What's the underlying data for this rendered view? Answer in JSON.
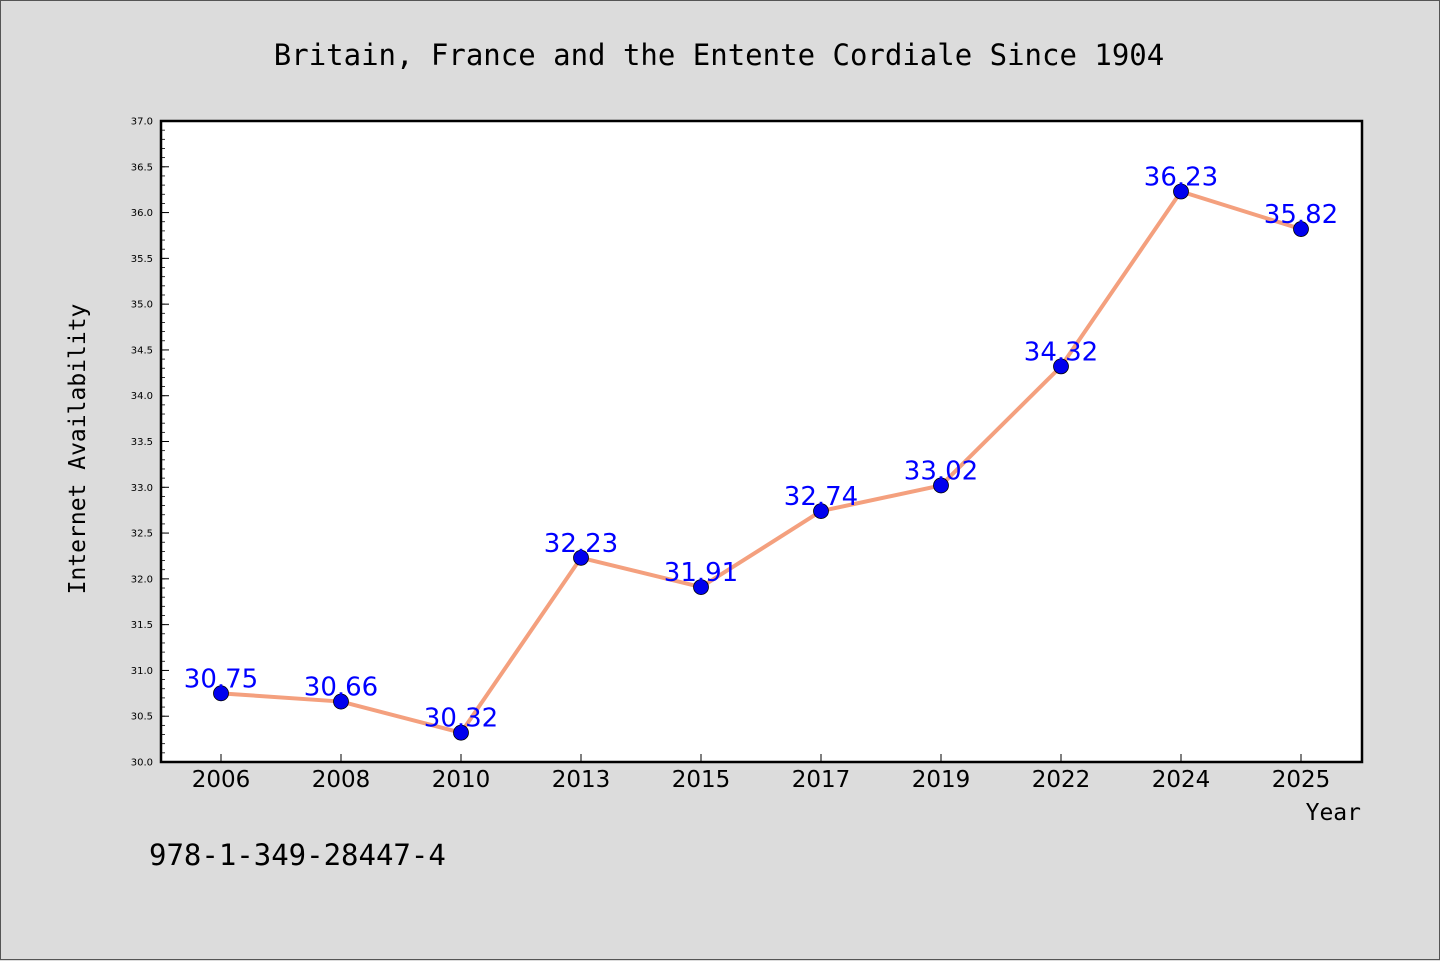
{
  "chart_data": {
    "type": "line",
    "title": "Britain, France and the Entente Cordiale Since 1904",
    "xlabel": "Year",
    "ylabel": "Internet Availability",
    "categories": [
      "2006",
      "2008",
      "2010",
      "2013",
      "2015",
      "2017",
      "2019",
      "2022",
      "2024",
      "2025"
    ],
    "series": [
      {
        "values": [
          30.75,
          30.66,
          30.32,
          32.23,
          31.91,
          32.74,
          33.02,
          34.32,
          36.23,
          35.82
        ],
        "labels": [
          "30.75",
          "30.66",
          "30.32",
          "32.23",
          "31.91",
          "32.74",
          "33.02",
          "34.32",
          "36.23",
          "35.82"
        ],
        "line_color": "#f4a07e",
        "marker_color": "#0000ee",
        "label_color": "#0000ff"
      }
    ],
    "ylim": [
      30.0,
      37.0
    ],
    "yticks": [
      "30.0",
      "30.5",
      "31.0",
      "31.5",
      "32.0",
      "32.5",
      "33.0",
      "33.5",
      "34.0",
      "34.5",
      "35.0",
      "35.5",
      "36.0",
      "36.5",
      "37.0"
    ],
    "grid": false,
    "legend": "none"
  },
  "annotation": "978-1-349-28447-4"
}
